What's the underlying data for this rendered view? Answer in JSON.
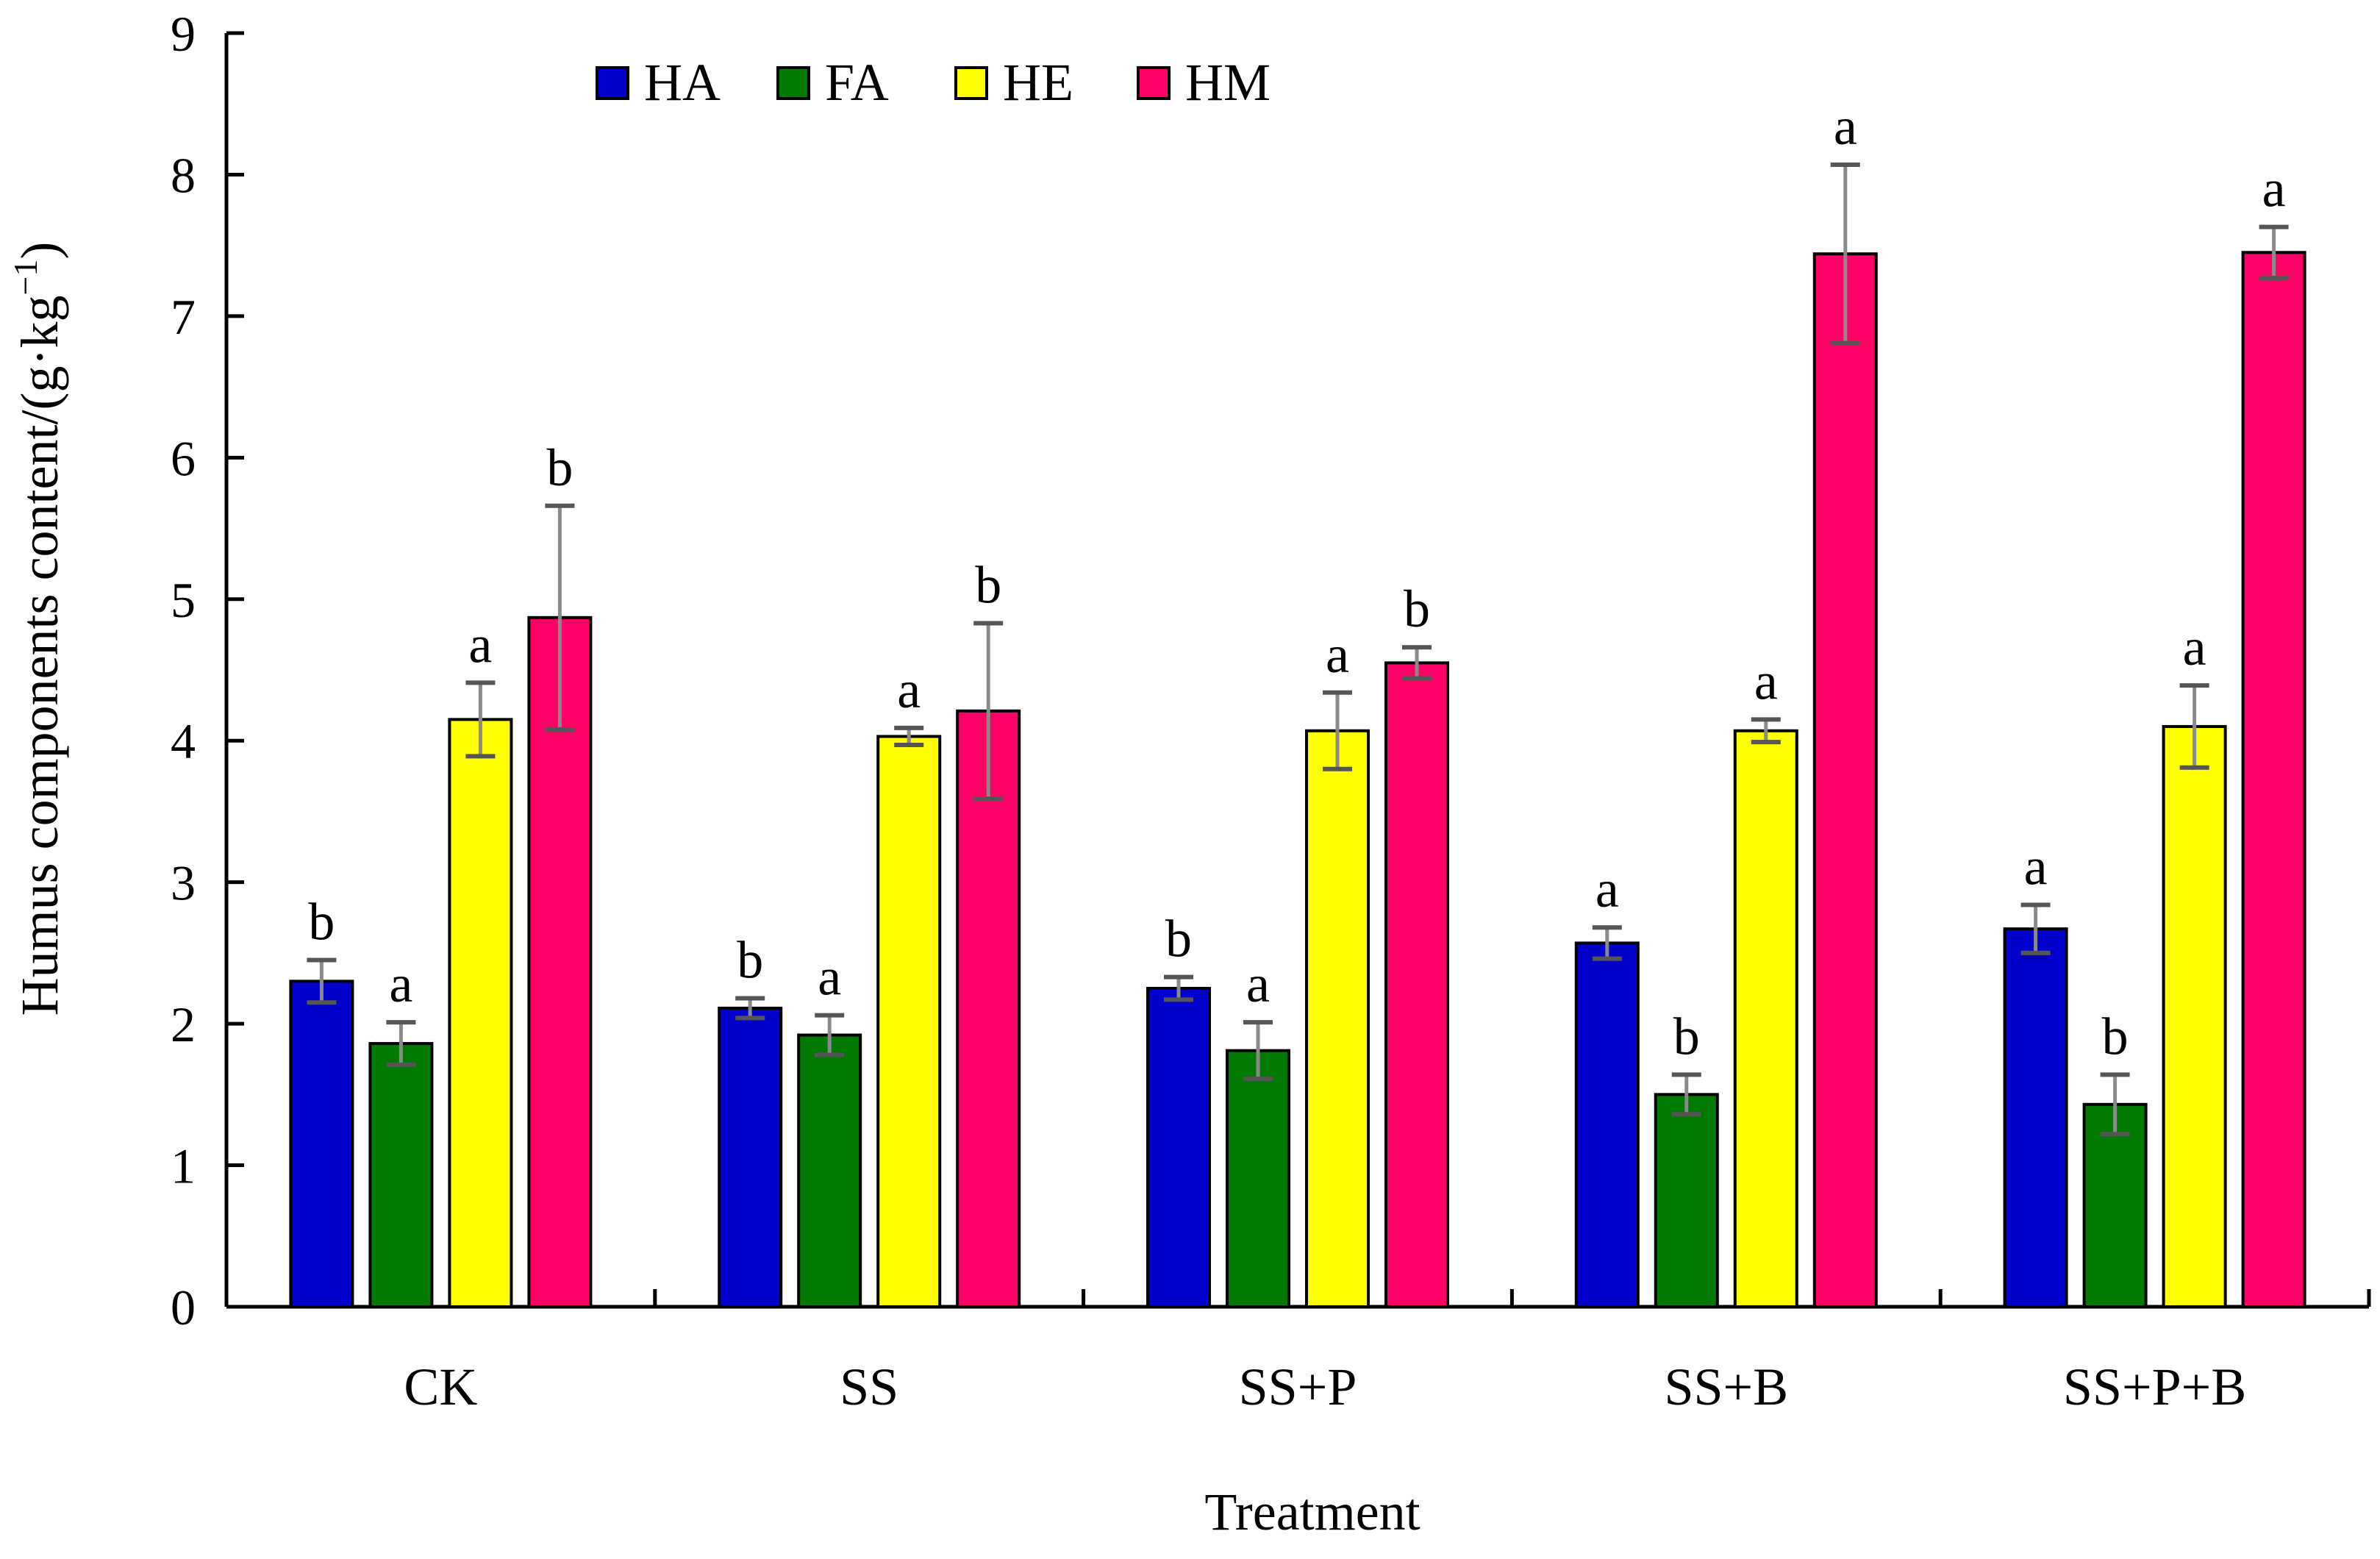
{
  "chart_data": {
    "type": "bar",
    "title": "",
    "xlabel": "Treatment",
    "ylabel_main": "Humus components content/(g·kg",
    "ylabel_sup": "−1",
    "ylabel_close": ")",
    "ylim": [
      0,
      9
    ],
    "yticks": [
      "0",
      "1",
      "2",
      "3",
      "4",
      "5",
      "6",
      "7",
      "8",
      "9"
    ],
    "categories": [
      "CK",
      "SS",
      "SS+P",
      "SS+B",
      "SS+P+B"
    ],
    "legend_position": "top-center",
    "series": [
      {
        "name": "HA",
        "color": "#0000CC",
        "values": [
          2.3,
          2.11,
          2.25,
          2.57,
          2.67
        ],
        "errors": [
          0.15,
          0.07,
          0.08,
          0.11,
          0.17
        ],
        "letters": [
          "b",
          "b",
          "b",
          "a",
          "a"
        ]
      },
      {
        "name": "FA",
        "color": "#007A00",
        "values": [
          1.86,
          1.92,
          1.81,
          1.5,
          1.43
        ],
        "errors": [
          0.15,
          0.14,
          0.2,
          0.14,
          0.21
        ],
        "letters": [
          "a",
          "a",
          "a",
          "b",
          "b"
        ]
      },
      {
        "name": "HE",
        "color": "#FFFF00",
        "values": [
          4.15,
          4.03,
          4.07,
          4.07,
          4.1
        ],
        "errors": [
          0.26,
          0.06,
          0.27,
          0.08,
          0.29
        ],
        "letters": [
          "a",
          "a",
          "a",
          "a",
          "a"
        ]
      },
      {
        "name": "HM",
        "color": "#FF0066",
        "values": [
          4.87,
          4.21,
          4.55,
          7.44,
          7.45
        ],
        "errors": [
          0.79,
          0.62,
          0.11,
          0.63,
          0.18
        ],
        "letters": [
          "b",
          "b",
          "b",
          "a",
          "a"
        ]
      }
    ]
  }
}
